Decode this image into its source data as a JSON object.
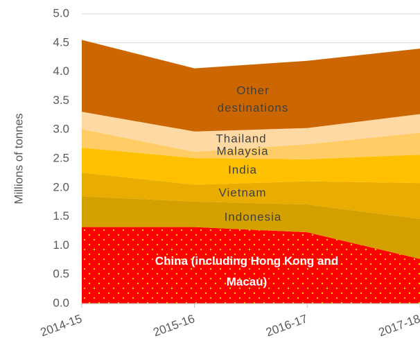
{
  "chart_data": {
    "type": "stacked_area",
    "y_label": "Millions of tonnes",
    "categories": [
      "2014-15",
      "2015-16",
      "2016-17",
      "2017-18"
    ],
    "ylim": [
      0,
      5
    ],
    "yticks": [
      {
        "value": 0,
        "label": "0.0"
      },
      {
        "value": 0.5,
        "label": "0.5"
      },
      {
        "value": 1,
        "label": "1.0"
      },
      {
        "value": 1.5,
        "label": "1.5"
      },
      {
        "value": 2,
        "label": "2.0"
      },
      {
        "value": 2.5,
        "label": "2.5"
      },
      {
        "value": 3,
        "label": "3.0"
      },
      {
        "value": 3.5,
        "label": "3.5"
      },
      {
        "value": 4,
        "label": "4.0"
      },
      {
        "value": 4.5,
        "label": "4.5"
      },
      {
        "value": 5,
        "label": "5.0"
      }
    ],
    "grid": true,
    "series": [
      {
        "name": "China (including Hong Kong and Macau)",
        "color": "#ff0000",
        "pattern": "dotted",
        "values": [
          1.32,
          1.32,
          1.23,
          0.77
        ]
      },
      {
        "name": "Indonesia",
        "color": "#d4a000",
        "values": [
          0.53,
          0.44,
          0.48,
          0.69
        ]
      },
      {
        "name": "Vietnam",
        "color": "#e8ad00",
        "values": [
          0.41,
          0.29,
          0.4,
          0.62
        ]
      },
      {
        "name": "India",
        "color": "#ffc000",
        "values": [
          0.43,
          0.46,
          0.38,
          0.49
        ]
      },
      {
        "name": "Malaysia",
        "color": "#ffcc66",
        "values": [
          0.32,
          0.11,
          0.26,
          0.38
        ]
      },
      {
        "name": "Thailand",
        "color": "#ffd9a3",
        "values": [
          0.3,
          0.35,
          0.28,
          0.32
        ]
      },
      {
        "name": "Other destinations",
        "color": "#cc6600",
        "values": [
          1.24,
          1.09,
          1.16,
          1.13
        ]
      }
    ]
  }
}
